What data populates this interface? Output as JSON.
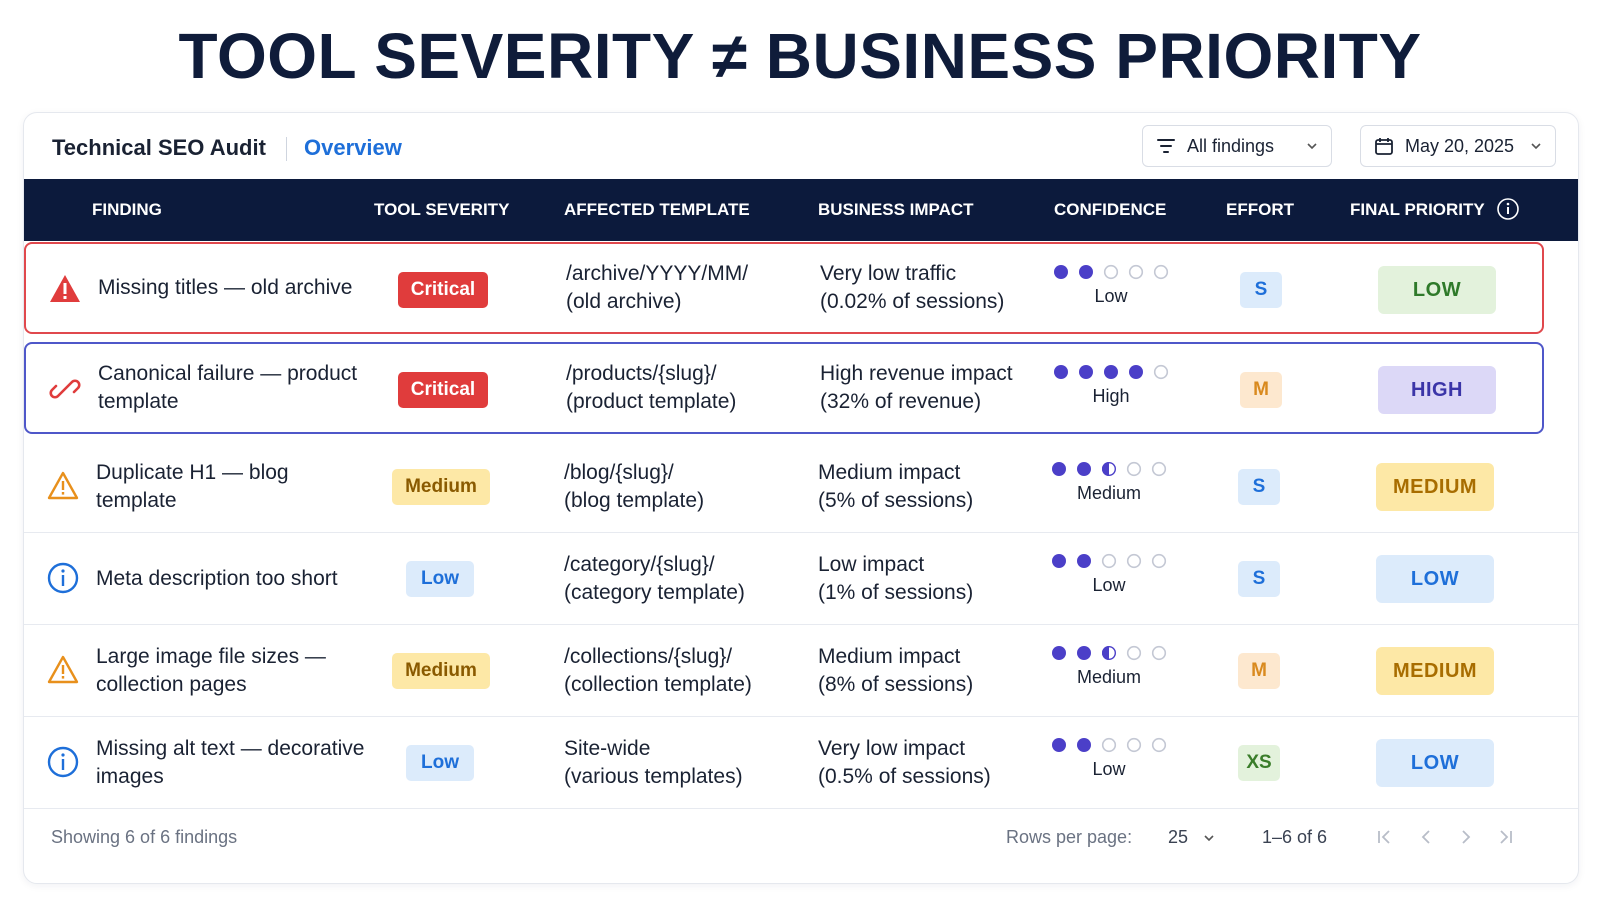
{
  "headline": "TOOL SEVERITY ≠ BUSINESS PRIORITY",
  "header": {
    "title": "Technical SEO Audit",
    "tab": "Overview",
    "filter_label": "All findings",
    "date_label": "May 20, 2025"
  },
  "columns": [
    "FINDING",
    "TOOL SEVERITY",
    "AFFECTED TEMPLATE",
    "BUSINESS IMPACT",
    "CONFIDENCE",
    "EFFORT",
    "FINAL PRIORITY"
  ],
  "rows": [
    {
      "icon": "alert-red-icon",
      "finding": "Missing titles — old archive",
      "severity": "Critical",
      "template_line1": "/archive/YYYY/MM/",
      "template_line2": "(old archive)",
      "impact_line1": "Very low traffic",
      "impact_line2": "(0.02% of sessions)",
      "confidence_level": 2,
      "confidence_label": "Low",
      "effort": "S",
      "priority": "LOW"
    },
    {
      "icon": "broken-link-icon",
      "finding": "Canonical failure — product template",
      "severity": "Critical",
      "template_line1": "/products/{slug}/",
      "template_line2": "(product template)",
      "impact_line1": "High revenue impact",
      "impact_line2": "(32% of revenue)",
      "confidence_level": 4,
      "confidence_label": "High",
      "effort": "M",
      "priority": "HIGH"
    },
    {
      "icon": "warning-icon",
      "finding": "Duplicate H1 — blog template",
      "severity": "Medium",
      "template_line1": "/blog/{slug}/",
      "template_line2": "(blog template)",
      "impact_line1": "Medium impact",
      "impact_line2": "(5% of sessions)",
      "confidence_level": 2.5,
      "confidence_label": "Medium",
      "effort": "S",
      "priority": "MEDIUM"
    },
    {
      "icon": "info-circle-icon",
      "finding": "Meta description too short",
      "severity": "Low",
      "template_line1": "/category/{slug}/",
      "template_line2": "(category template)",
      "impact_line1": "Low impact",
      "impact_line2": "(1% of sessions)",
      "confidence_level": 2,
      "confidence_label": "Low",
      "effort": "S",
      "priority": "LOW"
    },
    {
      "icon": "warning-icon",
      "finding": "Large image file sizes — collection pages",
      "severity": "Medium",
      "template_line1": "/collections/{slug}/",
      "template_line2": "(collection template)",
      "impact_line1": "Medium impact",
      "impact_line2": "(8% of sessions)",
      "confidence_level": 2.5,
      "confidence_label": "Medium",
      "effort": "M",
      "priority": "MEDIUM"
    },
    {
      "icon": "info-circle-icon",
      "finding": "Missing alt text — decorative images",
      "severity": "Low",
      "template_line1": "Site-wide",
      "template_line2": "(various templates)",
      "impact_line1": "Very low impact",
      "impact_line2": "(0.5% of sessions)",
      "confidence_level": 2,
      "confidence_label": "Low",
      "effort": "XS",
      "priority": "LOW"
    }
  ],
  "footer": {
    "showing": "Showing 6 of 6 findings",
    "rows_per_page_label": "Rows per page:",
    "rows_per_page_value": "25",
    "range": "1–6 of 6"
  },
  "colors": {
    "header_bg": "#0c1a3c",
    "accent_blue": "#1e6fd9",
    "critical": "#e03c3c",
    "dot_filled": "#4b3fc8",
    "dot_empty": "#c4c8d4"
  }
}
